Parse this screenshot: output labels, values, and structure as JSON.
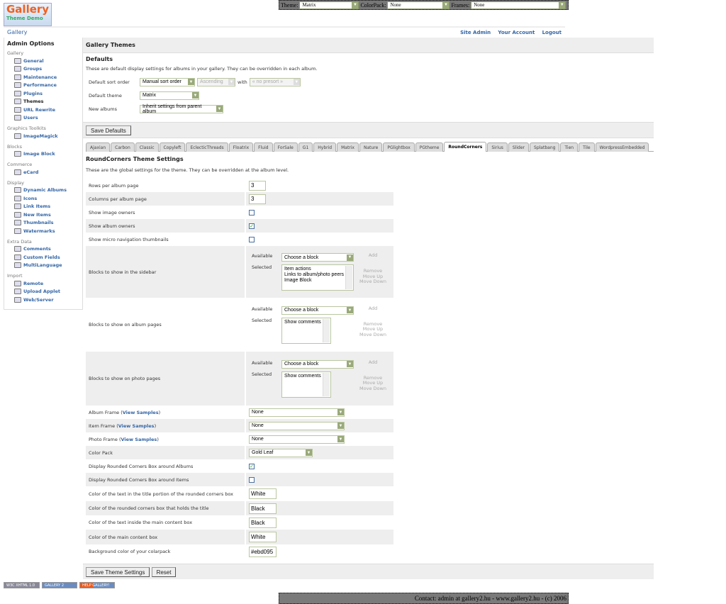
{
  "topbar": {
    "theme_label": "Theme:",
    "theme_value": "Matrix",
    "colorpack_label": "ColorPack:",
    "colorpack_value": "None",
    "frames_label": "Frames:",
    "frames_value": "None"
  },
  "logo": {
    "text": "Gallery",
    "sub": "Theme Demo"
  },
  "nav": {
    "breadcrumb": "Gallery",
    "links": [
      "Site Admin",
      "Your Account",
      "Logout"
    ]
  },
  "sidebar": {
    "title": "Admin Options",
    "groups": [
      {
        "label": "Gallery",
        "items": [
          "General",
          "Groups",
          "Maintenance",
          "Performance",
          "Plugins",
          "Themes",
          "URL Rewrite",
          "Users"
        ]
      },
      {
        "label": "Graphics Toolkits",
        "items": [
          "ImageMagick"
        ]
      },
      {
        "label": "Blocks",
        "items": [
          "Image Block"
        ]
      },
      {
        "label": "Commerce",
        "items": [
          "eCard"
        ]
      },
      {
        "label": "Display",
        "items": [
          "Dynamic Albums",
          "Icons",
          "Link Items",
          "New Items",
          "Thumbnails",
          "Watermarks"
        ]
      },
      {
        "label": "Extra Data",
        "items": [
          "Comments",
          "Custom Fields",
          "MultiLanguage"
        ]
      },
      {
        "label": "Import",
        "items": [
          "Remote",
          "Upload Applet",
          "Web/Server"
        ]
      }
    ],
    "current": "Themes"
  },
  "main": {
    "title": "Gallery Themes",
    "defaults": {
      "heading": "Defaults",
      "description": "These are default display settings for albums in your gallery. They can be overridden in each album.",
      "sort_label": "Default sort order",
      "sort_value": "Manual sort order",
      "direction_value": "Ascending",
      "with_label": "with",
      "presort_value": "« no presort »",
      "theme_label": "Default theme",
      "theme_value": "Matrix",
      "new_albums_label": "New albums",
      "new_albums_value": "Inherit settings from parent album",
      "save_label": "Save Defaults"
    },
    "tabs": [
      "Ajaxian",
      "Carbon",
      "Classic",
      "Copyleft",
      "EclecticThreads",
      "Floatrix",
      "Fluid",
      "ForSale",
      "G1",
      "Hybrid",
      "Matrix",
      "Nature",
      "PGlightbox",
      "PGtheme",
      "RoundCorners",
      "Sirius",
      "Slider",
      "Splatbang",
      "Tien",
      "Tile",
      "WordpressEmbedded"
    ],
    "active_tab": "RoundCorners",
    "theme_settings": {
      "heading": "RoundCorners Theme Settings",
      "description": "These are the global settings for the theme. They can be overridden at the album level.",
      "available_label": "Available",
      "selected_label": "Selected",
      "choose_placeholder": "Choose a block",
      "add_label": "Add",
      "remove_label": "Remove",
      "move_up_label": "Move Up",
      "move_down_label": "Move Down",
      "view_samples": "View Samples",
      "rows": [
        {
          "label": "Rows per album page",
          "type": "text",
          "value": "3"
        },
        {
          "label": "Columns per album page",
          "type": "text",
          "value": "3"
        },
        {
          "label": "Show image owners",
          "type": "checkbox",
          "checked": false
        },
        {
          "label": "Show album owners",
          "type": "checkbox",
          "checked": true
        },
        {
          "label": "Show micro navigation thumbnails",
          "type": "checkbox",
          "checked": false
        },
        {
          "label": "Blocks to show in the sidebar",
          "type": "blocks",
          "selected": [
            "Item actions",
            "Links to album/photo peers",
            "Image Block"
          ]
        },
        {
          "label": "Blocks to show on album pages",
          "type": "blocks",
          "selected": [
            "Show comments"
          ]
        },
        {
          "label": "Blocks to show on photo pages",
          "type": "blocks",
          "selected": [
            "Show comments"
          ]
        },
        {
          "label": "Album Frame",
          "type": "select",
          "value": "None",
          "samples": true
        },
        {
          "label": "Item Frame",
          "type": "select",
          "value": "None",
          "samples": true
        },
        {
          "label": "Photo Frame",
          "type": "select",
          "value": "None",
          "samples": true
        },
        {
          "label": "Color Pack",
          "type": "select-short",
          "value": "Gold Leaf"
        },
        {
          "label": "Display Rounded Corners Box around Albums",
          "type": "checkbox",
          "checked": true
        },
        {
          "label": "Display Rounded Corners Box around Items",
          "type": "checkbox",
          "checked": false
        },
        {
          "label": "Color of the text in the title portion of the rounded corners box",
          "type": "text",
          "value": "White"
        },
        {
          "label": "Color of the rounded corners box that holds the title",
          "type": "text",
          "value": "Black"
        },
        {
          "label": "Color of the text inside the main content box",
          "type": "text",
          "value": "Black"
        },
        {
          "label": "Color of the main content box",
          "type": "text",
          "value": "White"
        },
        {
          "label": "Background color of your colarpack",
          "type": "text",
          "value": "#ebd095"
        }
      ]
    },
    "save_label": "Save Theme Settings",
    "reset_label": "Reset"
  },
  "badges": [
    "W3C XHTML 1.0",
    "GALLERY 2",
    "HELP GALLERY!"
  ],
  "footer": {
    "text": "Contact: admin at gallery2.hu - www.gallery2.hu - (c) 2006"
  },
  "colors": {
    "link": "#3466a5",
    "panel": "#eeeeee",
    "field_border": "#b9c7a0"
  }
}
